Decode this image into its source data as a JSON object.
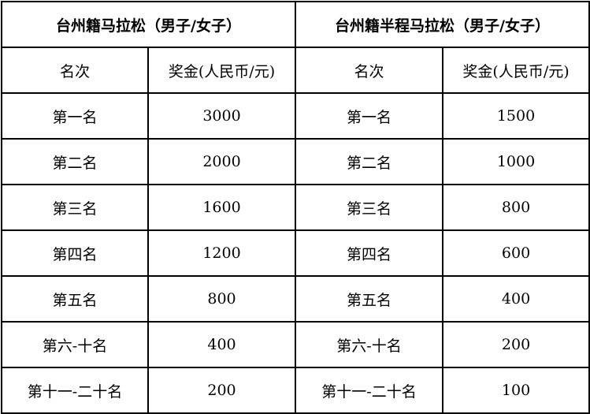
{
  "tables": [
    {
      "title": "台州籍马拉松（男子/女子）",
      "headers": [
        "名次",
        "奖金(人民币/元)"
      ],
      "rows": [
        [
          "第一名",
          "3000"
        ],
        [
          "第二名",
          "2000"
        ],
        [
          "第三名",
          "1600"
        ],
        [
          "第四名",
          "1200"
        ],
        [
          "第五名",
          "800"
        ],
        [
          "第六-十名",
          "400"
        ],
        [
          "第十一-二十名",
          "200"
        ]
      ]
    },
    {
      "title": "台州籍半程马拉松（男子/女子）",
      "headers": [
        "名次",
        "奖金(人民币/元)"
      ],
      "rows": [
        [
          "第一名",
          "1500"
        ],
        [
          "第二名",
          "1000"
        ],
        [
          "第三名",
          "800"
        ],
        [
          "第四名",
          "600"
        ],
        [
          "第五名",
          "400"
        ],
        [
          "第六-十名",
          "200"
        ],
        [
          "第十一-二十名",
          "100"
        ]
      ]
    }
  ]
}
